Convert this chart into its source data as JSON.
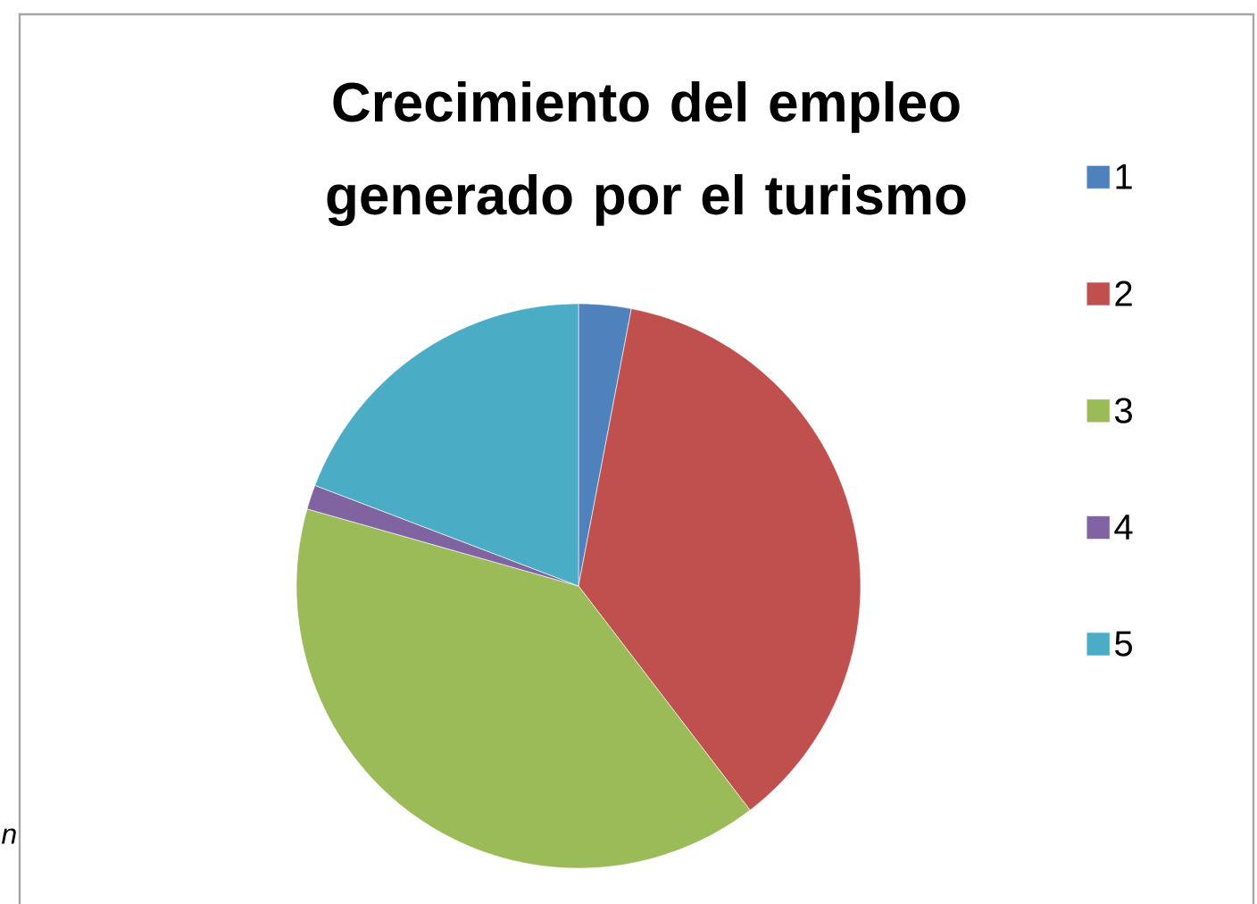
{
  "chart_data": {
    "type": "pie",
    "title": "Crecimiento del empleo generado por el turismo",
    "categories": [
      "1",
      "2",
      "3",
      "4",
      "5"
    ],
    "values": [
      3.0,
      36.6,
      39.8,
      1.4,
      19.2
    ],
    "colors": [
      "#4f81bd",
      "#c0504d",
      "#9bbb59",
      "#8064a2",
      "#4bacc6"
    ],
    "legend": "right",
    "annotations": [
      "n"
    ]
  }
}
